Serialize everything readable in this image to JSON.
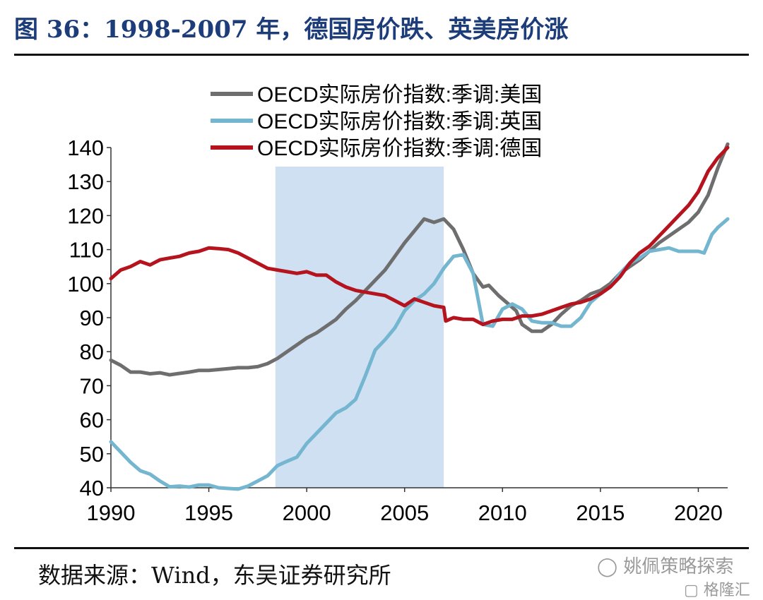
{
  "header": {
    "title": "图 36：1998-2007 年，德国房价跌、英美房价涨"
  },
  "footer": {
    "source": "数据来源：Wind，东吴证券研究所"
  },
  "watermarks": {
    "wechat": "姚佩策略探索",
    "site": "格隆汇"
  },
  "chart_data": {
    "type": "line",
    "title": "",
    "xlabel": "",
    "ylabel": "",
    "xlim": [
      1990,
      2021.5
    ],
    "ylim": [
      40,
      140
    ],
    "x_ticks": [
      1990,
      1995,
      2000,
      2005,
      2010,
      2015,
      2020
    ],
    "y_ticks": [
      40,
      50,
      60,
      70,
      80,
      90,
      100,
      110,
      120,
      130,
      140
    ],
    "grid": false,
    "legend_position": "top-center",
    "highlight_band": {
      "from": 1998.4,
      "to": 2007.0,
      "color": "#cfe0f2"
    },
    "series": [
      {
        "name": "OECD实际房价指数:季调:美国",
        "color": "#6e6e6e",
        "points": [
          [
            1990,
            77.5
          ],
          [
            1990.5,
            76
          ],
          [
            1991,
            74
          ],
          [
            1991.5,
            74
          ],
          [
            1992,
            73.5
          ],
          [
            1992.5,
            73.8
          ],
          [
            1993,
            73.2
          ],
          [
            1993.5,
            73.6
          ],
          [
            1994,
            74
          ],
          [
            1994.5,
            74.5
          ],
          [
            1995,
            74.5
          ],
          [
            1996,
            75
          ],
          [
            1996.5,
            75.3
          ],
          [
            1997,
            75.3
          ],
          [
            1997.5,
            75.6
          ],
          [
            1998,
            76.5
          ],
          [
            1998.5,
            78
          ],
          [
            1999,
            80
          ],
          [
            1999.5,
            82
          ],
          [
            2000,
            84
          ],
          [
            2000.5,
            85.5
          ],
          [
            2001,
            87.5
          ],
          [
            2001.5,
            89.5
          ],
          [
            2002,
            92.5
          ],
          [
            2002.5,
            95
          ],
          [
            2003,
            98
          ],
          [
            2003.5,
            101
          ],
          [
            2004,
            104
          ],
          [
            2004.5,
            108
          ],
          [
            2005,
            112
          ],
          [
            2005.5,
            115.5
          ],
          [
            2006,
            119
          ],
          [
            2006.5,
            118
          ],
          [
            2007,
            119
          ],
          [
            2007.5,
            116
          ],
          [
            2008,
            110
          ],
          [
            2008.5,
            103
          ],
          [
            2009,
            99
          ],
          [
            2009.3,
            99.5
          ],
          [
            2009.8,
            96.5
          ],
          [
            2010.3,
            94
          ],
          [
            2010.7,
            92
          ],
          [
            2011,
            88
          ],
          [
            2011.5,
            86
          ],
          [
            2012,
            86
          ],
          [
            2012.5,
            88
          ],
          [
            2013,
            91
          ],
          [
            2013.5,
            93.5
          ],
          [
            2014,
            95
          ],
          [
            2014.5,
            97
          ],
          [
            2015,
            98
          ],
          [
            2015.5,
            100
          ],
          [
            2016,
            103
          ],
          [
            2016.5,
            105
          ],
          [
            2017,
            107
          ],
          [
            2017.5,
            109.5
          ],
          [
            2018,
            112
          ],
          [
            2018.5,
            114
          ],
          [
            2019,
            116
          ],
          [
            2019.5,
            118
          ],
          [
            2020,
            121
          ],
          [
            2020.5,
            126
          ],
          [
            2021,
            134
          ],
          [
            2021.5,
            141
          ]
        ]
      },
      {
        "name": "OECD实际房价指数:季调:英国",
        "color": "#74b6d0",
        "points": [
          [
            1990,
            53.5
          ],
          [
            1990.5,
            50.5
          ],
          [
            1991,
            47.5
          ],
          [
            1991.5,
            45
          ],
          [
            1992,
            44
          ],
          [
            1992.5,
            42
          ],
          [
            1993,
            40.3
          ],
          [
            1993.5,
            40.5
          ],
          [
            1994,
            40.2
          ],
          [
            1994.5,
            40.8
          ],
          [
            1995,
            40.8
          ],
          [
            1995.5,
            40
          ],
          [
            1996,
            39.8
          ],
          [
            1996.5,
            39.6
          ],
          [
            1997,
            40.5
          ],
          [
            1997.5,
            42
          ],
          [
            1998,
            43.5
          ],
          [
            1998.5,
            46.5
          ],
          [
            1999,
            47.8
          ],
          [
            1999.5,
            49
          ],
          [
            2000,
            53
          ],
          [
            2000.5,
            56
          ],
          [
            2001,
            59
          ],
          [
            2001.5,
            62
          ],
          [
            2002,
            63.5
          ],
          [
            2002.5,
            66
          ],
          [
            2003,
            73
          ],
          [
            2003.5,
            80.5
          ],
          [
            2004,
            83.5
          ],
          [
            2004.5,
            87
          ],
          [
            2005,
            92
          ],
          [
            2005.5,
            95
          ],
          [
            2006,
            97
          ],
          [
            2006.5,
            100
          ],
          [
            2007,
            104.5
          ],
          [
            2007.5,
            108
          ],
          [
            2008,
            108.5
          ],
          [
            2008.5,
            103
          ],
          [
            2009,
            88
          ],
          [
            2009.5,
            87.5
          ],
          [
            2010,
            92.5
          ],
          [
            2010.5,
            94
          ],
          [
            2011,
            92.5
          ],
          [
            2011.5,
            89
          ],
          [
            2012,
            88.5
          ],
          [
            2012.5,
            88.5
          ],
          [
            2013,
            87.5
          ],
          [
            2013.5,
            87.5
          ],
          [
            2014,
            90
          ],
          [
            2014.5,
            94.5
          ],
          [
            2015,
            97
          ],
          [
            2015.5,
            99
          ],
          [
            2016,
            103
          ],
          [
            2016.5,
            106
          ],
          [
            2017,
            107.5
          ],
          [
            2017.5,
            109.5
          ],
          [
            2018,
            110
          ],
          [
            2018.5,
            110.5
          ],
          [
            2019,
            109.5
          ],
          [
            2019.5,
            109.5
          ],
          [
            2020,
            109.5
          ],
          [
            2020.3,
            109
          ],
          [
            2020.7,
            114.5
          ],
          [
            2021,
            116.5
          ],
          [
            2021.5,
            119
          ]
        ]
      },
      {
        "name": "OECD实际房价指数:季调:德国",
        "color": "#b5141e",
        "points": [
          [
            1990,
            101.5
          ],
          [
            1990.5,
            104
          ],
          [
            1991,
            105
          ],
          [
            1991.5,
            106.5
          ],
          [
            1992,
            105.5
          ],
          [
            1992.5,
            107
          ],
          [
            1993,
            107.5
          ],
          [
            1993.5,
            108
          ],
          [
            1994,
            109
          ],
          [
            1994.5,
            109.5
          ],
          [
            1995,
            110.5
          ],
          [
            1995.5,
            110.3
          ],
          [
            1996,
            110
          ],
          [
            1996.5,
            109
          ],
          [
            1997,
            107.5
          ],
          [
            1997.5,
            106
          ],
          [
            1998,
            104.5
          ],
          [
            1998.5,
            104
          ],
          [
            1999,
            103.5
          ],
          [
            1999.5,
            103
          ],
          [
            2000,
            103.5
          ],
          [
            2000.5,
            102.5
          ],
          [
            2001,
            102.5
          ],
          [
            2001.5,
            100.5
          ],
          [
            2002,
            99
          ],
          [
            2002.5,
            98
          ],
          [
            2003,
            97.5
          ],
          [
            2003.5,
            97
          ],
          [
            2004,
            96.5
          ],
          [
            2004.5,
            95
          ],
          [
            2005,
            93.5
          ],
          [
            2005.5,
            95.5
          ],
          [
            2006,
            94.5
          ],
          [
            2006.5,
            93.5
          ],
          [
            2007,
            93
          ],
          [
            2007.1,
            89
          ],
          [
            2007.5,
            90
          ],
          [
            2008,
            89.5
          ],
          [
            2008.5,
            89.5
          ],
          [
            2009,
            88
          ],
          [
            2009.5,
            89
          ],
          [
            2010,
            89.5
          ],
          [
            2010.5,
            89.5
          ],
          [
            2011,
            90.5
          ],
          [
            2011.5,
            90.5
          ],
          [
            2012,
            91
          ],
          [
            2012.5,
            92
          ],
          [
            2013,
            93
          ],
          [
            2013.5,
            94
          ],
          [
            2014,
            94.5
          ],
          [
            2014.5,
            95.5
          ],
          [
            2015,
            97
          ],
          [
            2015.5,
            99
          ],
          [
            2016,
            102
          ],
          [
            2016.5,
            106
          ],
          [
            2017,
            109
          ],
          [
            2017.5,
            111
          ],
          [
            2018,
            114
          ],
          [
            2018.5,
            117
          ],
          [
            2019,
            120
          ],
          [
            2019.5,
            123
          ],
          [
            2020,
            127
          ],
          [
            2020.5,
            133
          ],
          [
            2021,
            137
          ],
          [
            2021.5,
            140
          ]
        ]
      }
    ]
  }
}
